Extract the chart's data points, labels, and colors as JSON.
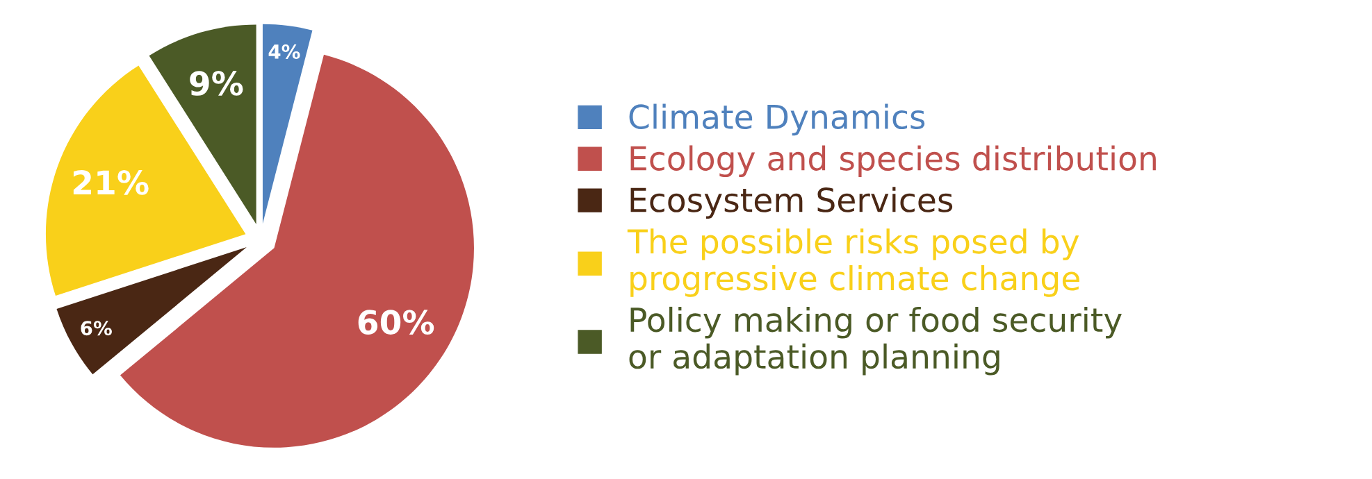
{
  "chart_data": {
    "type": "pie",
    "categories": [
      "Climate Dynamics",
      "Ecology and species distribution",
      "Ecosystem Services",
      "The possible risks posed by\nprogressive climate change",
      "Policy making or food security\nor adaptation planning"
    ],
    "values": [
      4,
      60,
      6,
      21,
      9
    ],
    "colors": [
      "#4f81bd",
      "#c0504d",
      "#4a2714",
      "#f9d01a",
      "#4b5a26"
    ],
    "value_labels": [
      "4%",
      "60%",
      "6%",
      "21%",
      "9%"
    ],
    "legend": "right"
  }
}
